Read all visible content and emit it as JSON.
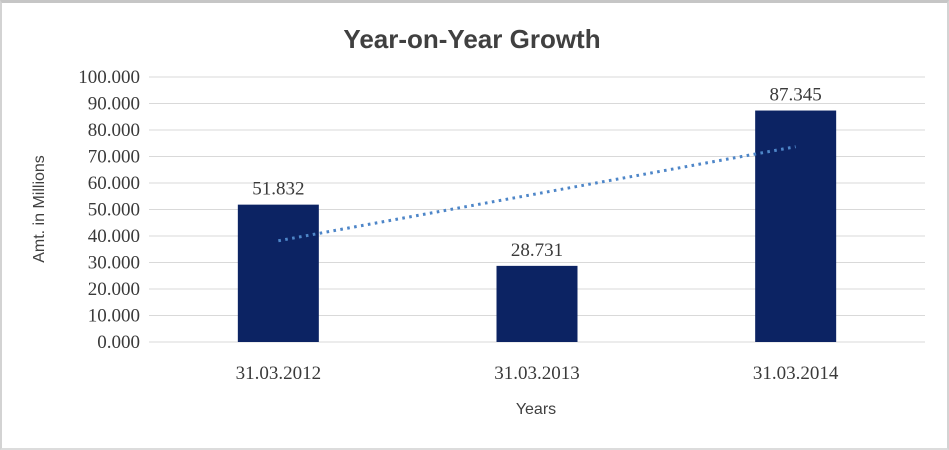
{
  "chart_data": {
    "type": "bar",
    "title": "Year-on-Year Growth",
    "categories": [
      "31.03.2012",
      "31.03.2013",
      "31.03.2014"
    ],
    "values": [
      51.832,
      28.731,
      87.345
    ],
    "data_labels": [
      "51.832",
      "28.731",
      "87.345"
    ],
    "xlabel": "Years",
    "ylabel": "Amt. in Millions",
    "ylim": [
      0,
      100
    ],
    "y_tick_step": 10,
    "y_tick_labels": [
      "0.000",
      "10.000",
      "20.000",
      "30.000",
      "40.000",
      "50.000",
      "60.000",
      "70.000",
      "80.000",
      "90.000",
      "100.000"
    ],
    "grid": true,
    "legend": "none",
    "bar_color": "#0c2363",
    "gridline_color": "#d9d9d9",
    "title_color": "#404040",
    "tick_text_color": "#3a3a3a",
    "trendline": {
      "type": "linear",
      "style": "dotted",
      "color": "#4e86c8",
      "start_value": 38.2,
      "end_value": 73.7
    }
  }
}
